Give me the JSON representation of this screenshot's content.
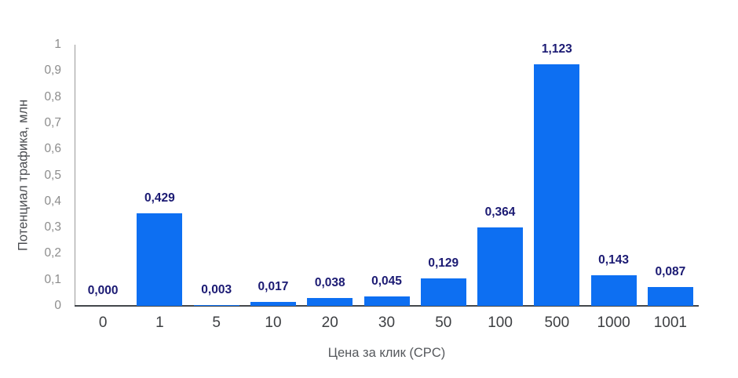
{
  "chart_data": {
    "type": "bar",
    "title": "",
    "xlabel": "Цена за клик (CPC)",
    "ylabel": "Потенциал трафика, млн",
    "categories": [
      "0",
      "1",
      "5",
      "10",
      "20",
      "30",
      "50",
      "100",
      "500",
      "1000",
      "1001"
    ],
    "values": [
      0.0,
      0.429,
      0.003,
      0.017,
      0.038,
      0.045,
      0.129,
      0.364,
      1.123,
      0.143,
      0.087
    ],
    "value_labels": [
      "0,000",
      "0,429",
      "0,003",
      "0,017",
      "0,038",
      "0,045",
      "0,129",
      "0,364",
      "1,123",
      "0,143",
      "0,087"
    ],
    "ylim": [
      0,
      1
    ],
    "y_tick_values": [
      0,
      0.1,
      0.2,
      0.3,
      0.4,
      0.5,
      0.6,
      0.7,
      0.8,
      0.9,
      1
    ],
    "y_tick_labels": [
      "0",
      "0,1",
      "0,2",
      "0,3",
      "0,4",
      "0,5",
      "0,6",
      "0,7",
      "0,8",
      "0,9",
      "1"
    ],
    "grid": false,
    "legend": false,
    "bar_color": "#0d6ff2",
    "data_label_color": "#1b1a73",
    "bar_height_scale": 0.824
  }
}
